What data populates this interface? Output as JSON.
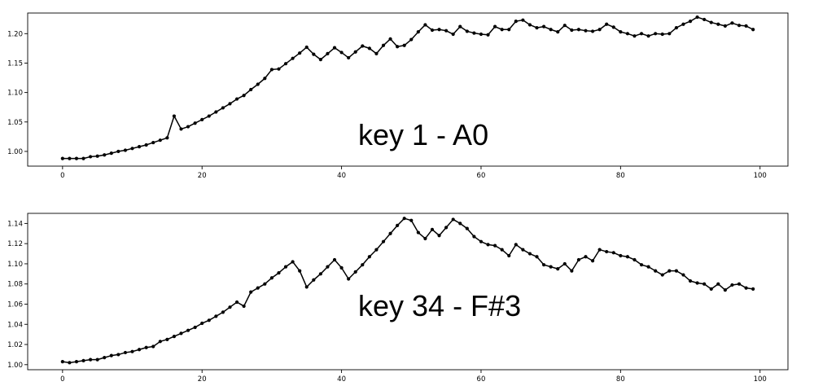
{
  "chart_data": [
    {
      "type": "line",
      "annotation": "key 1 - A0",
      "xlim": [
        -5,
        104
      ],
      "ylim": [
        0.975,
        1.235
      ],
      "xticks": [
        0,
        20,
        40,
        60,
        80,
        100
      ],
      "yticks": [
        1.0,
        1.05,
        1.1,
        1.15,
        1.2
      ],
      "ytick_decimals": 2,
      "series": [
        {
          "color": "#000000",
          "values": [
            0.988,
            0.988,
            0.988,
            0.988,
            0.991,
            0.992,
            0.994,
            0.997,
            1.0,
            1.002,
            1.005,
            1.008,
            1.011,
            1.015,
            1.019,
            1.023,
            1.06,
            1.038,
            1.042,
            1.048,
            1.054,
            1.06,
            1.067,
            1.074,
            1.081,
            1.089,
            1.095,
            1.105,
            1.114,
            1.124,
            1.139,
            1.14,
            1.149,
            1.158,
            1.167,
            1.177,
            1.165,
            1.156,
            1.166,
            1.176,
            1.168,
            1.159,
            1.169,
            1.179,
            1.175,
            1.166,
            1.18,
            1.191,
            1.178,
            1.18,
            1.19,
            1.203,
            1.215,
            1.206,
            1.207,
            1.205,
            1.199,
            1.212,
            1.204,
            1.201,
            1.199,
            1.198,
            1.212,
            1.207,
            1.207,
            1.221,
            1.223,
            1.215,
            1.21,
            1.212,
            1.207,
            1.203,
            1.214,
            1.206,
            1.207,
            1.205,
            1.204,
            1.207,
            1.216,
            1.211,
            1.203,
            1.2,
            1.196,
            1.2,
            1.196,
            1.2,
            1.199,
            1.2,
            1.21,
            1.216,
            1.221,
            1.228,
            1.224,
            1.219,
            1.216,
            1.213,
            1.218,
            1.214,
            1.213,
            1.207
          ]
        }
      ]
    },
    {
      "type": "line",
      "annotation": "key 34 - F#3",
      "xlim": [
        -5,
        104
      ],
      "ylim": [
        0.995,
        1.15
      ],
      "xticks": [
        0,
        20,
        40,
        60,
        80,
        100
      ],
      "yticks": [
        1.0,
        1.02,
        1.04,
        1.06,
        1.08,
        1.1,
        1.12,
        1.14
      ],
      "ytick_decimals": 2,
      "series": [
        {
          "color": "#000000",
          "values": [
            1.003,
            1.002,
            1.003,
            1.004,
            1.005,
            1.005,
            1.007,
            1.009,
            1.01,
            1.012,
            1.013,
            1.015,
            1.017,
            1.018,
            1.023,
            1.025,
            1.028,
            1.031,
            1.034,
            1.037,
            1.041,
            1.044,
            1.048,
            1.052,
            1.057,
            1.062,
            1.058,
            1.072,
            1.076,
            1.08,
            1.086,
            1.091,
            1.097,
            1.102,
            1.093,
            1.077,
            1.084,
            1.09,
            1.097,
            1.104,
            1.096,
            1.085,
            1.092,
            1.099,
            1.107,
            1.114,
            1.122,
            1.13,
            1.138,
            1.145,
            1.143,
            1.131,
            1.125,
            1.134,
            1.128,
            1.136,
            1.144,
            1.14,
            1.135,
            1.127,
            1.122,
            1.119,
            1.118,
            1.114,
            1.108,
            1.119,
            1.114,
            1.11,
            1.107,
            1.099,
            1.097,
            1.095,
            1.1,
            1.093,
            1.104,
            1.107,
            1.103,
            1.114,
            1.112,
            1.111,
            1.108,
            1.107,
            1.104,
            1.099,
            1.097,
            1.093,
            1.089,
            1.093,
            1.093,
            1.089,
            1.083,
            1.081,
            1.08,
            1.075,
            1.08,
            1.074,
            1.079,
            1.08,
            1.076,
            1.075
          ]
        }
      ]
    }
  ]
}
